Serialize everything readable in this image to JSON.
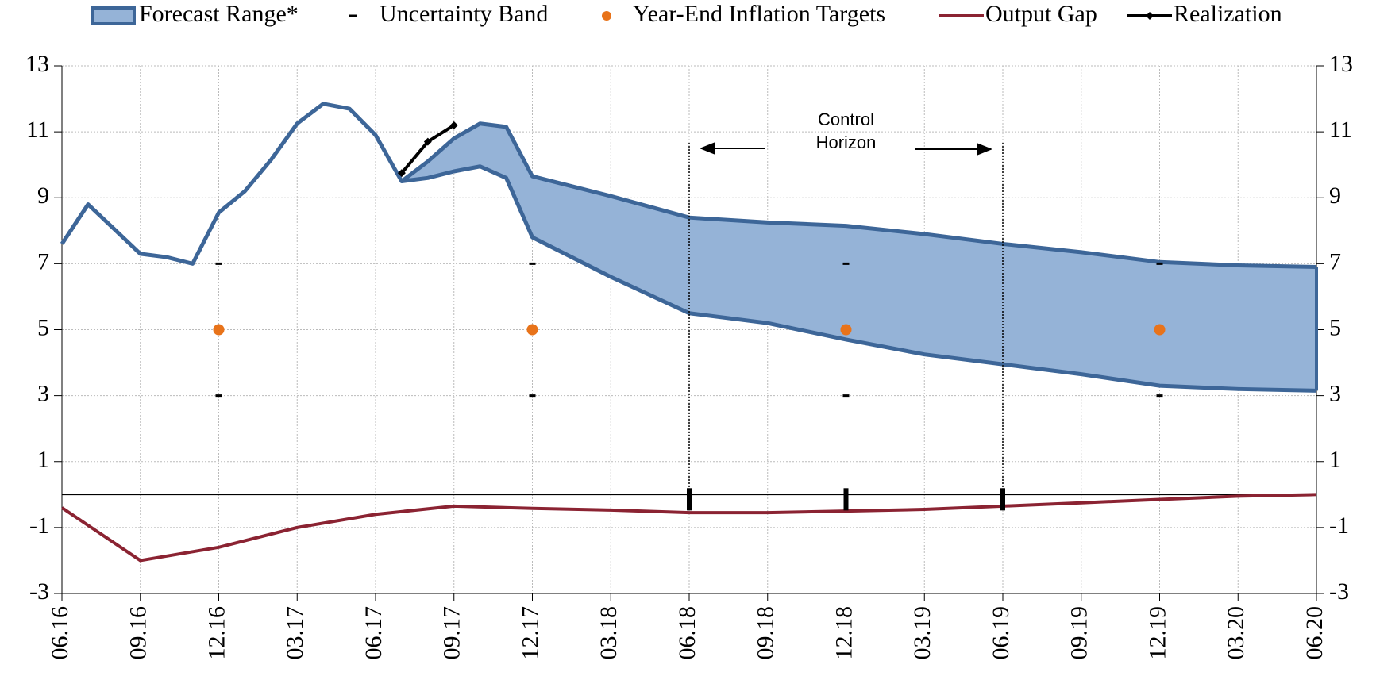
{
  "chart_data": {
    "type": "line",
    "xticks": [
      "06.16",
      "09.16",
      "12.16",
      "03.17",
      "06.17",
      "09.17",
      "12.17",
      "03.18",
      "06.18",
      "09.18",
      "12.18",
      "03.19",
      "06.19",
      "09.19",
      "12.19",
      "03.20",
      "06.20"
    ],
    "ylim": [
      -3,
      13
    ],
    "yticks": [
      -3,
      -1,
      1,
      3,
      5,
      7,
      9,
      11,
      13
    ],
    "y2lim": [
      -3,
      13
    ],
    "y2ticks": [
      -3,
      -1,
      1,
      3,
      5,
      7,
      9,
      11,
      13
    ],
    "grid": true,
    "legend": "top",
    "series": [
      {
        "name": "Forecast Range*",
        "kind": "band",
        "color": "#3d6698",
        "fill": "#95b3d7",
        "x": [
          "06.16",
          "07.16",
          "08.16",
          "09.16",
          "10.16",
          "11.16",
          "12.16",
          "01.17",
          "02.17",
          "03.17",
          "04.17",
          "05.17",
          "06.17",
          "07.17",
          "08.17",
          "09.17",
          "10.17",
          "11.17",
          "12.17",
          "03.18",
          "06.18",
          "09.18",
          "12.18",
          "03.19",
          "06.19",
          "09.19",
          "12.19",
          "03.20",
          "06.20"
        ],
        "values": [
          7.6,
          8.8,
          8.05,
          7.3,
          7.2,
          7.0,
          8.55,
          9.2,
          10.15,
          11.25,
          11.85,
          11.7,
          10.9,
          9.5,
          10.1,
          10.8,
          11.25,
          11.15,
          9.65,
          9.05,
          8.4,
          8.25,
          8.15,
          7.9,
          7.6,
          7.35,
          7.05,
          6.95,
          6.9
        ],
        "lower": [
          null,
          null,
          null,
          null,
          null,
          null,
          null,
          null,
          null,
          null,
          null,
          null,
          null,
          9.5,
          9.6,
          9.8,
          9.95,
          9.6,
          7.8,
          6.6,
          5.5,
          5.2,
          4.7,
          4.25,
          3.95,
          3.65,
          3.3,
          3.2,
          3.15
        ]
      },
      {
        "name": "Uncertainty Band",
        "kind": "dash",
        "color": "#000000",
        "x": [
          "12.16",
          "12.17",
          "12.18",
          "12.19"
        ],
        "values": [
          7,
          7,
          7,
          7
        ],
        "lower": [
          3,
          3,
          3,
          3
        ]
      },
      {
        "name": "Year-End Inflation Targets",
        "kind": "dot",
        "color": "#e8731a",
        "x": [
          "12.16",
          "12.17",
          "12.18",
          "12.19"
        ],
        "values": [
          5,
          5,
          5,
          5
        ]
      },
      {
        "name": "Output Gap",
        "kind": "line",
        "color": "#8b2332",
        "x": [
          "06.16",
          "09.16",
          "12.16",
          "03.17",
          "06.17",
          "09.17",
          "12.17",
          "03.18",
          "06.18",
          "09.18",
          "12.18",
          "03.19",
          "06.19",
          "09.19",
          "12.19",
          "03.20",
          "06.20"
        ],
        "values": [
          -0.4,
          -2.0,
          -1.6,
          -1.0,
          -0.6,
          -0.35,
          -0.42,
          -0.47,
          -0.55,
          -0.55,
          -0.5,
          -0.45,
          -0.35,
          -0.25,
          -0.15,
          -0.05,
          0.0
        ]
      },
      {
        "name": "Realization",
        "kind": "marker-line",
        "color": "#000000",
        "x": [
          "07.17",
          "08.17",
          "09.17"
        ],
        "values": [
          9.75,
          10.7,
          11.2
        ]
      }
    ],
    "annotation": {
      "text": [
        "Control",
        "Horizon"
      ],
      "x": [
        "06.18",
        "06.19"
      ]
    },
    "meeting_marks": [
      "06.18",
      "12.18",
      "06.19"
    ]
  }
}
